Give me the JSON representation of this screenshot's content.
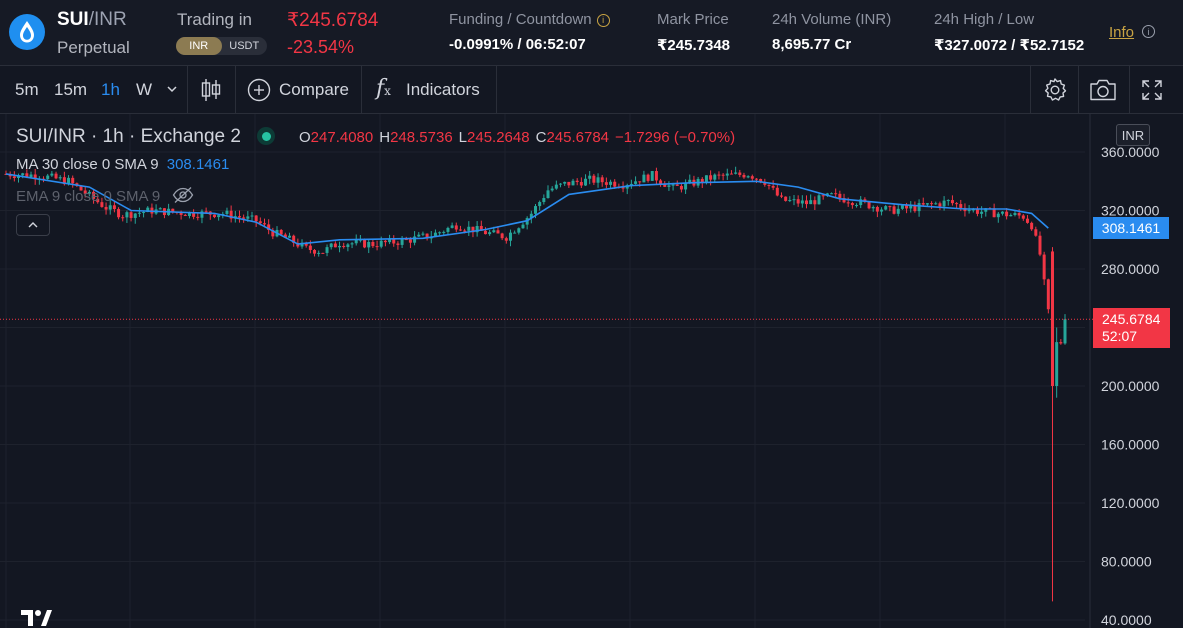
{
  "header": {
    "base": "SUI",
    "quote_sep": "/INR",
    "contract": "Perpetual",
    "trading_in_label": "Trading in",
    "currencies": [
      "INR",
      "USDT"
    ],
    "selected_currency": "INR",
    "last_price": "₹245.6784",
    "change_pct": "-23.54%",
    "funding_label": "Funding / Countdown",
    "funding_value": "-0.0991% / 06:52:07",
    "mark_label": "Mark Price",
    "mark_value": "₹245.7348",
    "volume_label": "24h Volume (INR)",
    "volume_value": "8,695.77 Cr",
    "highlow_label": "24h High / Low",
    "highlow_value": "₹327.0072 / ₹52.7152",
    "info_label": "Info",
    "info_icon": "i"
  },
  "toolbar": {
    "timeframes": [
      "5m",
      "15m",
      "1h",
      "W"
    ],
    "active_timeframe": "1h",
    "compare_label": "Compare",
    "indicators_label": "Indicators",
    "fx_glyph": "f",
    "fx_sub": "x"
  },
  "legend": {
    "symbol": "SUI/INR · 1h · Exchange 2",
    "o_label": "O",
    "o_value": "247.4080",
    "h_label": "H",
    "h_value": "248.5736",
    "l_label": "L",
    "l_value": "245.2648",
    "c_label": "C",
    "c_value": "245.6784",
    "change": "−1.7296 (−0.70%)",
    "ma_label": "MA 30 close 0 SMA 9",
    "ma_value": "308.1461",
    "ema_label": "EMA 9 close 0 SMA 9"
  },
  "axis": {
    "currency_badge": "INR",
    "ticks": [
      "360.0000",
      "320.0000",
      "280.0000",
      "200.0000",
      "160.0000",
      "120.0000",
      "80.0000",
      "40.0000"
    ],
    "ma_tag": "308.1461",
    "price_tag": "245.6784",
    "countdown_tag": "52:07"
  },
  "colors": {
    "up": "#26a69a",
    "down": "#f23645",
    "ma": "#2a8cf0",
    "background": "#131722"
  },
  "chart_data": {
    "type": "candlestick",
    "title": "SUI/INR · 1h · Exchange 2",
    "ylim": [
      40,
      370
    ],
    "grid": true,
    "ma_final": 308.1461,
    "last_close": 245.6784,
    "close_path": [
      [
        0,
        345
      ],
      [
        8,
        344
      ],
      [
        15,
        340
      ],
      [
        20,
        330
      ],
      [
        24,
        322
      ],
      [
        28,
        317
      ],
      [
        35,
        320
      ],
      [
        45,
        318
      ],
      [
        52,
        318
      ],
      [
        60,
        313
      ],
      [
        64,
        305
      ],
      [
        68,
        300
      ],
      [
        72,
        294
      ],
      [
        76,
        292
      ],
      [
        80,
        298
      ],
      [
        88,
        297
      ],
      [
        95,
        299
      ],
      [
        102,
        303
      ],
      [
        108,
        310
      ],
      [
        115,
        305
      ],
      [
        120,
        302
      ],
      [
        126,
        318
      ],
      [
        130,
        334
      ],
      [
        134,
        338
      ],
      [
        140,
        341
      ],
      [
        148,
        338
      ],
      [
        155,
        344
      ],
      [
        160,
        335
      ],
      [
        170,
        343
      ],
      [
        178,
        345
      ],
      [
        182,
        340
      ],
      [
        186,
        327
      ],
      [
        192,
        325
      ],
      [
        198,
        330
      ],
      [
        204,
        326
      ],
      [
        212,
        320
      ],
      [
        218,
        322
      ],
      [
        226,
        326
      ],
      [
        232,
        320
      ],
      [
        238,
        318
      ],
      [
        244,
        316
      ],
      [
        246,
        310
      ],
      [
        248,
        290
      ],
      [
        250,
        250
      ],
      [
        251,
        200
      ],
      [
        251.5,
        52
      ],
      [
        252,
        195
      ],
      [
        253,
        230
      ],
      [
        254,
        245.6784
      ]
    ],
    "ma_path": [
      [
        0,
        345
      ],
      [
        20,
        336
      ],
      [
        30,
        320
      ],
      [
        50,
        318
      ],
      [
        60,
        312
      ],
      [
        70,
        297
      ],
      [
        80,
        300
      ],
      [
        100,
        301
      ],
      [
        115,
        307
      ],
      [
        125,
        313
      ],
      [
        135,
        331
      ],
      [
        150,
        337
      ],
      [
        165,
        339
      ],
      [
        180,
        340
      ],
      [
        190,
        336
      ],
      [
        200,
        328
      ],
      [
        215,
        324
      ],
      [
        230,
        321
      ],
      [
        240,
        321
      ],
      [
        246,
        318
      ],
      [
        250,
        308
      ]
    ]
  }
}
